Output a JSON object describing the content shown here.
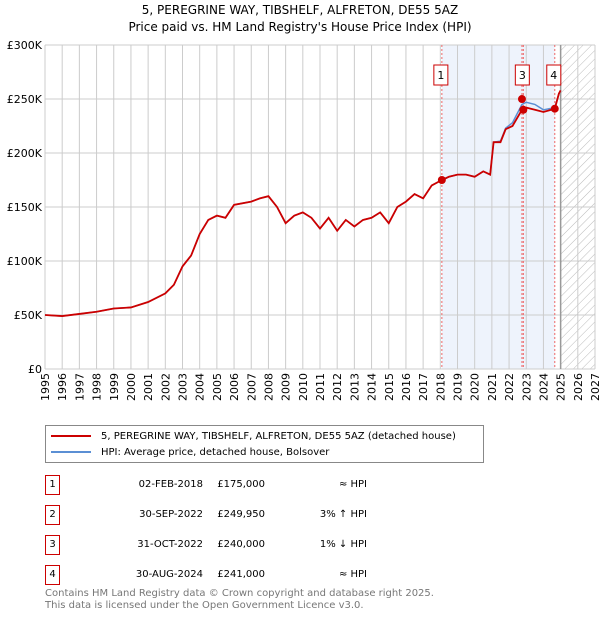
{
  "chart_data": {
    "type": "line",
    "title": "5, PEREGRINE WAY, TIBSHELF, ALFRETON, DE55 5AZ",
    "subtitle": "Price paid vs. HM Land Registry's House Price Index (HPI)",
    "xlim": [
      1995,
      2027
    ],
    "ylim": [
      0,
      300000
    ],
    "x_ticks": [
      "1995",
      "1996",
      "1997",
      "1998",
      "1999",
      "2000",
      "2001",
      "2002",
      "2003",
      "2004",
      "2005",
      "2006",
      "2007",
      "2008",
      "2009",
      "2010",
      "2011",
      "2012",
      "2013",
      "2014",
      "2015",
      "2016",
      "2017",
      "2018",
      "2019",
      "2020",
      "2021",
      "2022",
      "2023",
      "2024",
      "2025",
      "2026",
      "2027"
    ],
    "y_ticks": [
      {
        "v": 0,
        "label": "£0"
      },
      {
        "v": 50000,
        "label": "£50K"
      },
      {
        "v": 100000,
        "label": "£100K"
      },
      {
        "v": 150000,
        "label": "£150K"
      },
      {
        "v": 200000,
        "label": "£200K"
      },
      {
        "v": 250000,
        "label": "£250K"
      },
      {
        "v": 300000,
        "label": "£300K"
      }
    ],
    "grid": true,
    "shaded_region": [
      2018.09,
      2024.66
    ],
    "forecast_hatch_from": 2025.0,
    "series": [
      {
        "name": "5, PEREGRINE WAY, TIBSHELF, ALFRETON, DE55 5AZ (detached house)",
        "color": "#cc0000",
        "x": [
          1995,
          1996,
          1997,
          1998,
          1999,
          2000,
          2001,
          2002,
          2002.5,
          2003,
          2003.5,
          2004,
          2004.5,
          2005,
          2005.5,
          2006,
          2007,
          2007.5,
          2008,
          2008.5,
          2009,
          2009.5,
          2010,
          2010.5,
          2011,
          2011.5,
          2012,
          2012.5,
          2013,
          2013.5,
          2014,
          2014.5,
          2015,
          2015.5,
          2016,
          2016.5,
          2017,
          2017.5,
          2018.09,
          2018.5,
          2019,
          2019.5,
          2020,
          2020.5,
          2020.9,
          2021.1,
          2021.5,
          2021.8,
          2022.2,
          2022.75,
          2023,
          2023.5,
          2024,
          2024.66,
          2024.9,
          2025.0
        ],
        "y": [
          50000,
          49000,
          51000,
          53000,
          56000,
          57000,
          62000,
          70000,
          78000,
          95000,
          105000,
          125000,
          138000,
          142000,
          140000,
          152000,
          155000,
          158000,
          160000,
          150000,
          135000,
          142000,
          145000,
          140000,
          130000,
          140000,
          128000,
          138000,
          132000,
          138000,
          140000,
          145000,
          135000,
          150000,
          155000,
          162000,
          158000,
          170000,
          175000,
          178000,
          180000,
          180000,
          178000,
          183000,
          180000,
          210000,
          210000,
          222000,
          225000,
          240000,
          242000,
          240000,
          238000,
          241000,
          255000,
          258000
        ]
      },
      {
        "name": "HPI: Average price, detached house, Bolsover",
        "color": "#5b8fd4",
        "x": [
          1995,
          1996,
          1997,
          1998,
          1999,
          2000,
          2001,
          2002,
          2002.5,
          2003,
          2003.5,
          2004,
          2004.5,
          2005,
          2005.5,
          2006,
          2007,
          2007.5,
          2008,
          2008.5,
          2009,
          2009.5,
          2010,
          2010.5,
          2011,
          2011.5,
          2012,
          2012.5,
          2013,
          2013.5,
          2014,
          2014.5,
          2015,
          2015.5,
          2016,
          2016.5,
          2017,
          2017.5,
          2018.09,
          2018.5,
          2019,
          2019.5,
          2020,
          2020.5,
          2020.9,
          2021.1,
          2021.5,
          2021.8,
          2022.2,
          2022.75,
          2023,
          2023.5,
          2024,
          2024.66,
          2024.9,
          2025.0
        ],
        "y": [
          50000,
          49000,
          51000,
          53000,
          56000,
          57000,
          62000,
          70000,
          78000,
          95000,
          105000,
          125000,
          138000,
          142000,
          140000,
          152000,
          155000,
          158000,
          160000,
          150000,
          135000,
          142000,
          145000,
          140000,
          130000,
          140000,
          128000,
          138000,
          132000,
          138000,
          140000,
          145000,
          135000,
          150000,
          155000,
          162000,
          158000,
          170000,
          175000,
          178000,
          180000,
          180000,
          178000,
          183000,
          180000,
          210000,
          211000,
          223000,
          228000,
          245000,
          247000,
          245000,
          240000,
          242000,
          255000,
          258000
        ]
      }
    ],
    "transactions": [
      {
        "id": "1",
        "x": 2018.09,
        "y": 175000,
        "date": "02-FEB-2018",
        "price": "£175,000",
        "hpi": "≈ HPI"
      },
      {
        "id": "2",
        "x": 2022.75,
        "y": 249950,
        "date": "30-SEP-2022",
        "price": "£249,950",
        "hpi": "3% ↑ HPI"
      },
      {
        "id": "3",
        "x": 2022.83,
        "y": 240000,
        "date": "31-OCT-2022",
        "price": "£240,000",
        "hpi": "1% ↓ HPI"
      },
      {
        "id": "4",
        "x": 2024.66,
        "y": 241000,
        "date": "30-AUG-2024",
        "price": "£241,000",
        "hpi": "≈ HPI"
      }
    ],
    "chart_labels": [
      "1",
      "3",
      "4"
    ]
  },
  "legend": {
    "property": "5, PEREGRINE WAY, TIBSHELF, ALFRETON, DE55 5AZ (detached house)",
    "hpi": "HPI: Average price, detached house, Bolsover"
  },
  "footer": {
    "line1": "Contains HM Land Registry data © Crown copyright and database right 2025.",
    "line2": "This data is licensed under the Open Government Licence v3.0."
  }
}
